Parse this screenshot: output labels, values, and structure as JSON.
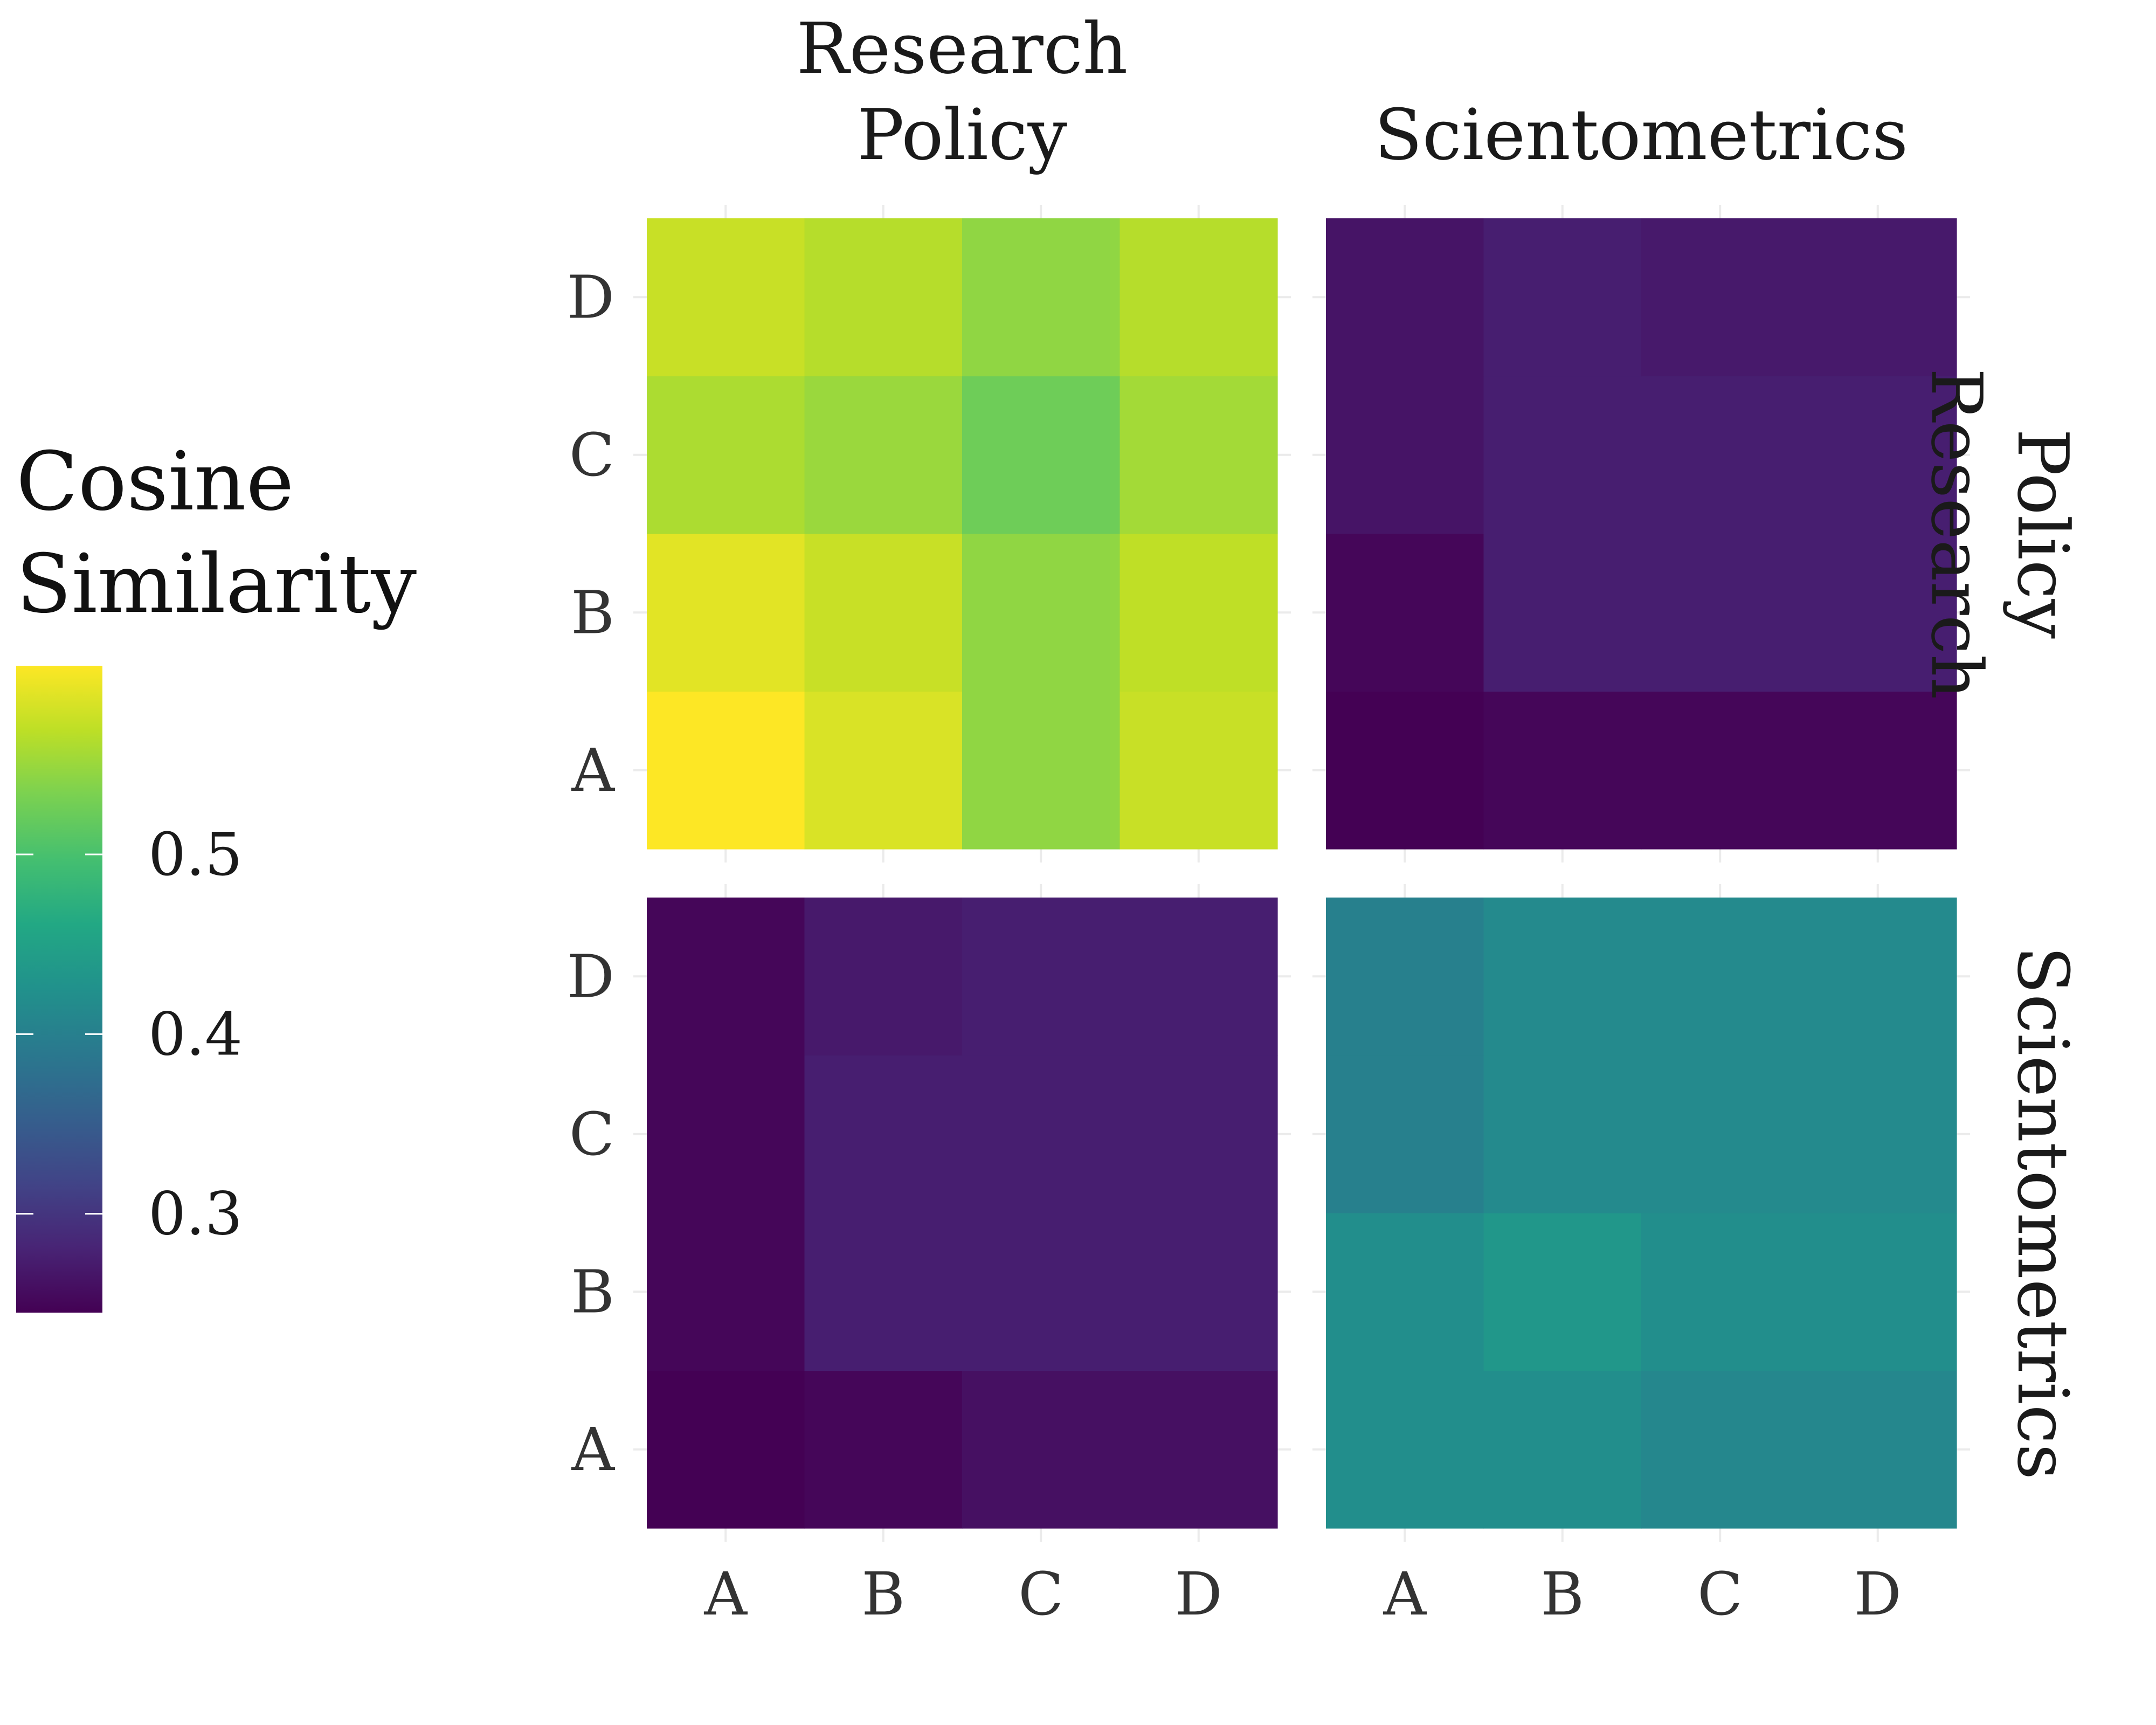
{
  "chart_data": {
    "type": "heatmap",
    "legend": {
      "title_lines": [
        "Cosine",
        "Similarity"
      ],
      "breaks": [
        0.3,
        0.4,
        0.5
      ],
      "break_labels": [
        "0.3",
        "0.4",
        "0.5"
      ],
      "range": [
        0.245,
        0.605
      ],
      "placement": "left",
      "colormap": "viridis"
    },
    "grid": true,
    "col_facets": [
      {
        "label_lines": [
          "Research",
          "Policy"
        ]
      },
      {
        "label_lines": [
          "Scientometrics"
        ]
      }
    ],
    "row_facets": [
      {
        "label_lines": [
          "Research",
          "Policy"
        ]
      },
      {
        "label_lines": [
          "Scientometrics"
        ]
      }
    ],
    "x_categories": [
      "A",
      "B",
      "C",
      "D"
    ],
    "y_categories": [
      "A",
      "B",
      "C",
      "D"
    ],
    "panels": [
      {
        "row": 0,
        "col": 0,
        "values": [
          [
            0.605,
            0.585,
            0.545,
            0.575
          ],
          [
            0.59,
            0.575,
            0.545,
            0.57
          ],
          [
            0.56,
            0.55,
            0.525,
            0.555
          ],
          [
            0.575,
            0.565,
            0.545,
            0.565
          ]
        ]
      },
      {
        "row": 0,
        "col": 1,
        "values": [
          [
            0.245,
            0.25,
            0.25,
            0.25
          ],
          [
            0.25,
            0.275,
            0.275,
            0.275
          ],
          [
            0.265,
            0.275,
            0.275,
            0.275
          ],
          [
            0.265,
            0.275,
            0.27,
            0.27
          ]
        ]
      },
      {
        "row": 1,
        "col": 0,
        "values": [
          [
            0.245,
            0.25,
            0.26,
            0.26
          ],
          [
            0.25,
            0.275,
            0.275,
            0.275
          ],
          [
            0.25,
            0.275,
            0.275,
            0.275
          ],
          [
            0.25,
            0.27,
            0.275,
            0.275
          ]
        ]
      },
      {
        "row": 1,
        "col": 1,
        "values": [
          [
            0.42,
            0.42,
            0.41,
            0.41
          ],
          [
            0.42,
            0.435,
            0.42,
            0.42
          ],
          [
            0.4,
            0.415,
            0.415,
            0.415
          ],
          [
            0.4,
            0.415,
            0.415,
            0.415
          ]
        ]
      }
    ]
  }
}
